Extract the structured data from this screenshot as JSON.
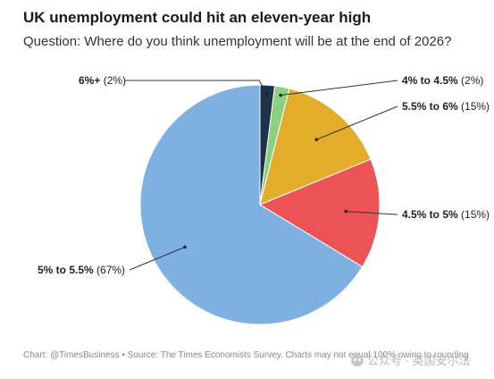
{
  "chart_data": {
    "type": "pie",
    "title": "UK unemployment could hit an eleven-year high",
    "subtitle": "Question: Where do you think unemployment will be at the end of 2026?",
    "slices": [
      {
        "label": "6%+",
        "value": 2,
        "value_label": "(2%)",
        "color": "#1d3347"
      },
      {
        "label": "4% to 4.5%",
        "value": 2,
        "value_label": "(2%)",
        "color": "#8ed082"
      },
      {
        "label": "5.5% to 6%",
        "value": 15,
        "value_label": "(15%)",
        "color": "#e3ac2b"
      },
      {
        "label": "4.5% to 5%",
        "value": 15,
        "value_label": "(15%)",
        "color": "#ec5355"
      },
      {
        "label": "5% to 5.5%",
        "value": 67,
        "value_label": "(67%)",
        "color": "#7eb0e2"
      }
    ],
    "start_angle_deg": 0,
    "direction": "clockwise"
  },
  "footer": "Chart: @TimesBusiness • Source: The Times Economists Survey. Charts may not equal 100% owing to rounding",
  "watermark": "公众号 · 英国安尔法"
}
